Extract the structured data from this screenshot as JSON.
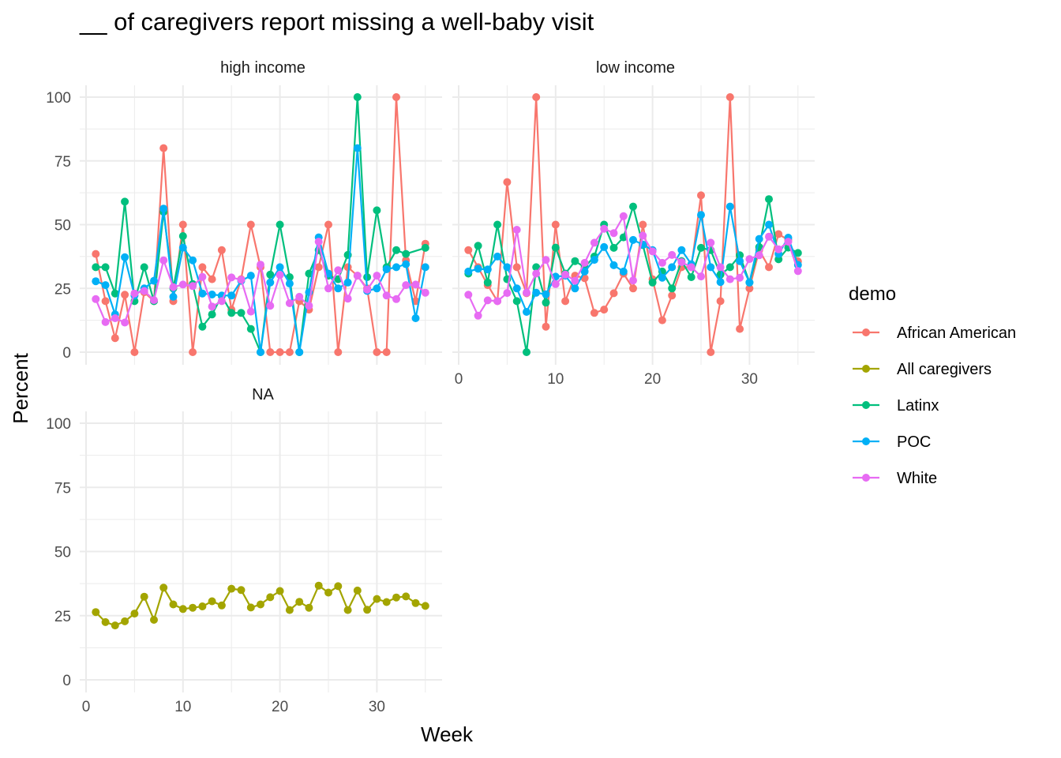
{
  "chart_data": {
    "type": "line",
    "title": "__ of caregivers report missing a well-baby visit",
    "xlabel": "Week",
    "ylabel": "Percent",
    "xlim": [
      0,
      35
    ],
    "ylim": [
      0,
      100
    ],
    "x_ticks": [
      0,
      10,
      20,
      30
    ],
    "y_ticks": [
      0,
      25,
      50,
      75,
      100
    ],
    "grid": true,
    "legend": {
      "title": "demo",
      "position": "right",
      "entries": [
        {
          "name": "African American",
          "color": "#F8766D"
        },
        {
          "name": "All caregivers",
          "color": "#A3A500"
        },
        {
          "name": "Latinx",
          "color": "#00BF7D"
        },
        {
          "name": "POC",
          "color": "#00B0F6"
        },
        {
          "name": "White",
          "color": "#E76BF3"
        }
      ]
    },
    "panels": [
      {
        "label": "high income",
        "series": [
          {
            "name": "African American",
            "x": [
              1,
              2,
              3,
              4,
              5,
              6,
              7,
              8,
              9,
              10,
              11,
              12,
              13,
              14,
              15,
              16,
              17,
              18,
              19,
              20,
              21,
              22,
              23,
              24,
              25,
              26,
              27,
              28,
              29,
              30,
              31,
              32,
              33,
              34,
              35
            ],
            "values": [
              38.5,
              20,
              5.5,
              22.5,
              0,
              23.5,
              20,
              80,
              20,
              50,
              0,
              33.3,
              28.6,
              40,
              16.7,
              28.6,
              50,
              33.3,
              0,
              0,
              0,
              20,
              16.7,
              33.3,
              50,
              0,
              33.3,
              30,
              25,
              0,
              0,
              100,
              36,
              20,
              42.5
            ]
          },
          {
            "name": "Latinx",
            "x": [
              1,
              2,
              3,
              4,
              5,
              6,
              7,
              8,
              9,
              10,
              11,
              12,
              13,
              14,
              15,
              16,
              17,
              18,
              19,
              20,
              21,
              22,
              23,
              24,
              25,
              26,
              27,
              28,
              29,
              30,
              31,
              32,
              33,
              35
            ],
            "values": [
              33.3,
              33.3,
              23,
              59,
              20,
              33.3,
              20,
              55,
              25,
              45.5,
              26.7,
              10,
              14.8,
              22,
              15.4,
              15.4,
              9.1,
              0,
              30.4,
              50,
              29.4,
              0,
              30.8,
              40,
              30,
              28.6,
              38.1,
              100,
              29.4,
              55.6,
              33.3,
              40,
              38.5,
              40.9
            ]
          },
          {
            "name": "POC",
            "x": [
              1,
              2,
              3,
              4,
              5,
              6,
              7,
              8,
              9,
              10,
              11,
              12,
              13,
              14,
              15,
              16,
              17,
              18,
              19,
              20,
              21,
              22,
              23,
              24,
              25,
              26,
              27,
              28,
              29,
              30,
              31,
              32,
              33,
              34,
              35
            ],
            "values": [
              27.8,
              26.3,
              14.8,
              37.2,
              22.2,
              25,
              28,
              56.3,
              21.7,
              41,
              36,
              23,
              22.6,
              22.2,
              22.2,
              28,
              30,
              0,
              27.3,
              33.3,
              26.9,
              0,
              23.5,
              45,
              30.8,
              25,
              27.3,
              80,
              24,
              25,
              32.5,
              33.3,
              34.5,
              13.3,
              33.3
            ]
          },
          {
            "name": "White",
            "x": [
              1,
              2,
              3,
              4,
              5,
              6,
              7,
              8,
              9,
              10,
              11,
              12,
              13,
              14,
              15,
              16,
              17,
              18,
              19,
              20,
              21,
              22,
              23,
              24,
              25,
              26,
              27,
              28,
              29,
              30,
              31,
              32,
              33,
              34,
              35
            ],
            "values": [
              20.8,
              11.8,
              13.3,
              11.6,
              23,
              24,
              20.4,
              36,
              25.5,
              26.5,
              25.9,
              29.5,
              17.9,
              20,
              29.3,
              28.4,
              15.9,
              34.3,
              18.2,
              30.3,
              19.2,
              21.7,
              18.2,
              43.3,
              25,
              32.1,
              21,
              30,
              24.5,
              30,
              22.2,
              20.8,
              26.3,
              26.5,
              23.3
            ]
          }
        ]
      },
      {
        "label": "low income",
        "series": [
          {
            "name": "African American",
            "x": [
              1,
              2,
              3,
              4,
              5,
              6,
              7,
              8,
              9,
              10,
              11,
              12,
              13,
              14,
              15,
              16,
              17,
              18,
              19,
              20,
              21,
              22,
              23,
              24,
              25,
              26,
              27,
              28,
              29,
              30,
              31,
              32,
              33,
              34,
              35
            ],
            "values": [
              40,
              33.3,
              26.3,
              20,
              66.7,
              33.3,
              23.1,
              100,
              10,
              50,
              20,
              30,
              29,
              15.4,
              16.7,
              23.1,
              30.8,
              25,
              50,
              28.6,
              12.5,
              22.2,
              33.3,
              33.3,
              61.5,
              0,
              20,
              100,
              9.1,
              25,
              40,
              33.3,
              46.3,
              44,
              35.6
            ]
          },
          {
            "name": "Latinx",
            "x": [
              1,
              2,
              3,
              4,
              5,
              6,
              7,
              8,
              9,
              10,
              11,
              12,
              13,
              14,
              15,
              16,
              17,
              18,
              19,
              20,
              21,
              22,
              23,
              24,
              25,
              26,
              27,
              28,
              29,
              30,
              31,
              32,
              33,
              34,
              35
            ],
            "values": [
              30.8,
              41.7,
              27.3,
              50,
              28.6,
              20,
              0,
              33.3,
              19.4,
              41,
              30.8,
              35.7,
              33.3,
              37.5,
              50,
              40.9,
              45,
              57.1,
              42,
              27.3,
              31.6,
              25,
              35.7,
              29.4,
              40.9,
              40,
              30.4,
              33.3,
              38,
              27.3,
              41.2,
              60,
              36.4,
              41,
              38.9
            ]
          },
          {
            "name": "POC",
            "x": [
              1,
              2,
              3,
              4,
              5,
              6,
              7,
              8,
              9,
              10,
              11,
              12,
              13,
              14,
              15,
              16,
              17,
              18,
              19,
              20,
              21,
              22,
              23,
              24,
              25,
              26,
              27,
              28,
              29,
              30,
              31,
              32,
              33,
              34,
              35
            ],
            "values": [
              31.6,
              32.7,
              32.4,
              37.5,
              33.3,
              25,
              15.8,
              23.3,
              22.7,
              29.6,
              30,
              25,
              31.6,
              36.2,
              41.2,
              34.1,
              31.6,
              44,
              42.2,
              40,
              29.2,
              33.3,
              40,
              34.5,
              53.8,
              33.3,
              27.5,
              57.1,
              35.7,
              27.3,
              44.4,
              50,
              38.5,
              44.9,
              34.2
            ]
          },
          {
            "name": "White",
            "x": [
              1,
              2,
              3,
              4,
              5,
              6,
              7,
              8,
              9,
              10,
              11,
              12,
              13,
              14,
              15,
              16,
              17,
              18,
              19,
              20,
              21,
              22,
              23,
              24,
              25,
              26,
              27,
              28,
              29,
              30,
              31,
              32,
              33,
              34,
              35
            ],
            "values": [
              22.5,
              14.3,
              20.3,
              20,
              23.2,
              48,
              23.3,
              30.8,
              36.2,
              26.7,
              30.4,
              28,
              35,
              42.9,
              48.4,
              46.7,
              53.3,
              28.1,
              45.7,
              39.5,
              35,
              38.1,
              35.3,
              33.3,
              29.7,
              42.9,
              33.3,
              28.6,
              29.2,
              36.5,
              38,
              45.3,
              40.3,
              43.3,
              31.8
            ]
          }
        ]
      },
      {
        "label": "NA",
        "series": [
          {
            "name": "All caregivers",
            "x": [
              1,
              2,
              3,
              4,
              5,
              6,
              7,
              8,
              9,
              10,
              11,
              12,
              13,
              14,
              15,
              16,
              17,
              18,
              19,
              20,
              21,
              22,
              23,
              24,
              25,
              26,
              27,
              28,
              29,
              30,
              31,
              32,
              33,
              34,
              35
            ],
            "values": [
              26.4,
              22.5,
              21.2,
              22.8,
              25.8,
              32.4,
              23.4,
              35.9,
              29.4,
              27.6,
              28.1,
              28.6,
              30.6,
              29,
              35.5,
              35,
              28.2,
              29.4,
              32.2,
              34.6,
              27.2,
              30.4,
              28.1,
              36.7,
              34,
              36.5,
              27.2,
              34.8,
              27.3,
              31.5,
              30.3,
              32.1,
              32.5,
              29.9,
              28.8
            ]
          }
        ]
      }
    ]
  }
}
